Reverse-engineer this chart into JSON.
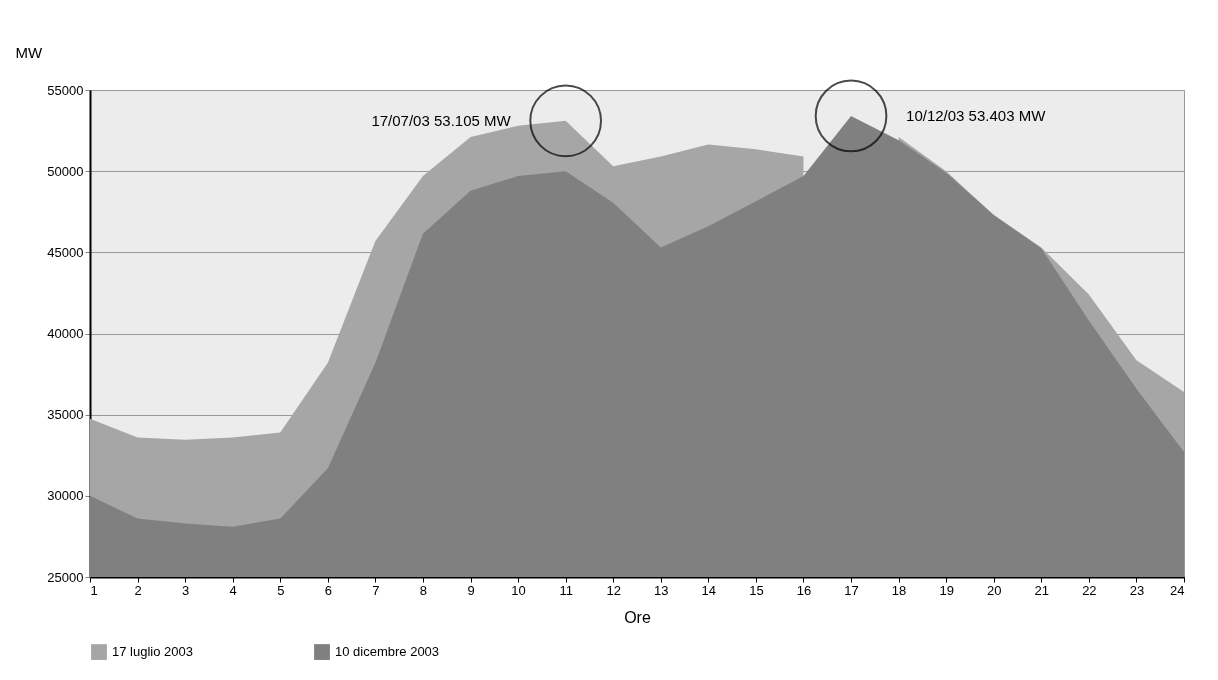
{
  "chart_data": {
    "type": "area",
    "xlabel": "Ore",
    "ylabel": "MW",
    "x": [
      1,
      2,
      3,
      4,
      5,
      6,
      7,
      8,
      9,
      10,
      11,
      12,
      13,
      14,
      15,
      16,
      17,
      18,
      19,
      20,
      21,
      22,
      23,
      24
    ],
    "series": [
      {
        "name": "17 luglio 2003",
        "color": "#a6a6a6",
        "values": [
          34750,
          33600,
          33450,
          33600,
          33900,
          38200,
          45700,
          49700,
          52100,
          52800,
          53100,
          50300,
          50900,
          51650,
          51350,
          50900,
          null,
          52100,
          50000,
          47300,
          45300,
          42400,
          38350,
          36400
        ]
      },
      {
        "name": "10 dicembre 2003",
        "color": "#808080",
        "values": [
          30000,
          28600,
          28300,
          28100,
          28600,
          31700,
          38200,
          46150,
          48800,
          49700,
          50000,
          48050,
          45300,
          46600,
          48150,
          49700,
          53400,
          51900,
          49900,
          47300,
          45250,
          40800,
          36600,
          32700
        ]
      }
    ],
    "xlim": [
      1,
      24
    ],
    "xticks": [
      1,
      2,
      3,
      4,
      5,
      6,
      7,
      8,
      9,
      10,
      11,
      12,
      13,
      14,
      15,
      16,
      17,
      18,
      19,
      20,
      21,
      22,
      23,
      24
    ],
    "ylim": [
      25000,
      55000
    ],
    "yticks": [
      25000,
      30000,
      35000,
      40000,
      45000,
      50000,
      55000
    ],
    "grid": "y",
    "legend": "bottom left",
    "annotations": [
      "17/07/03  53.105 MW",
      "10/12/03  53.403 MW"
    ]
  }
}
